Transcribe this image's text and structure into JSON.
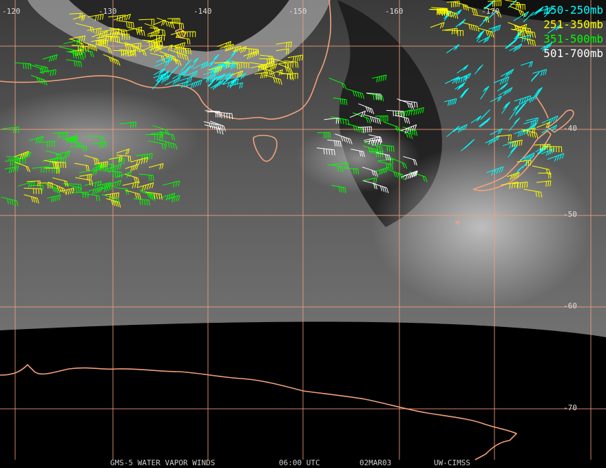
{
  "longitude_labels": [
    "-120",
    "-130",
    "-140",
    "-150",
    "-160",
    "-170"
  ],
  "latitude_labels": [
    "-40",
    "-50",
    "-60",
    "-70"
  ],
  "legend": [
    {
      "label": "150-250mb",
      "color": "#00ffff"
    },
    {
      "label": "251-350mb",
      "color": "#ffff00"
    },
    {
      "label": "351-500mb",
      "color": "#00ff00"
    },
    {
      "label": "501-700mb",
      "color": "#ffffff"
    }
  ],
  "footer": {
    "satellite": "GMS-5 WATER VAPOR WINDS",
    "time": "06:00 UTC",
    "date": "02MAR03",
    "source": "UW-CIMSS"
  }
}
